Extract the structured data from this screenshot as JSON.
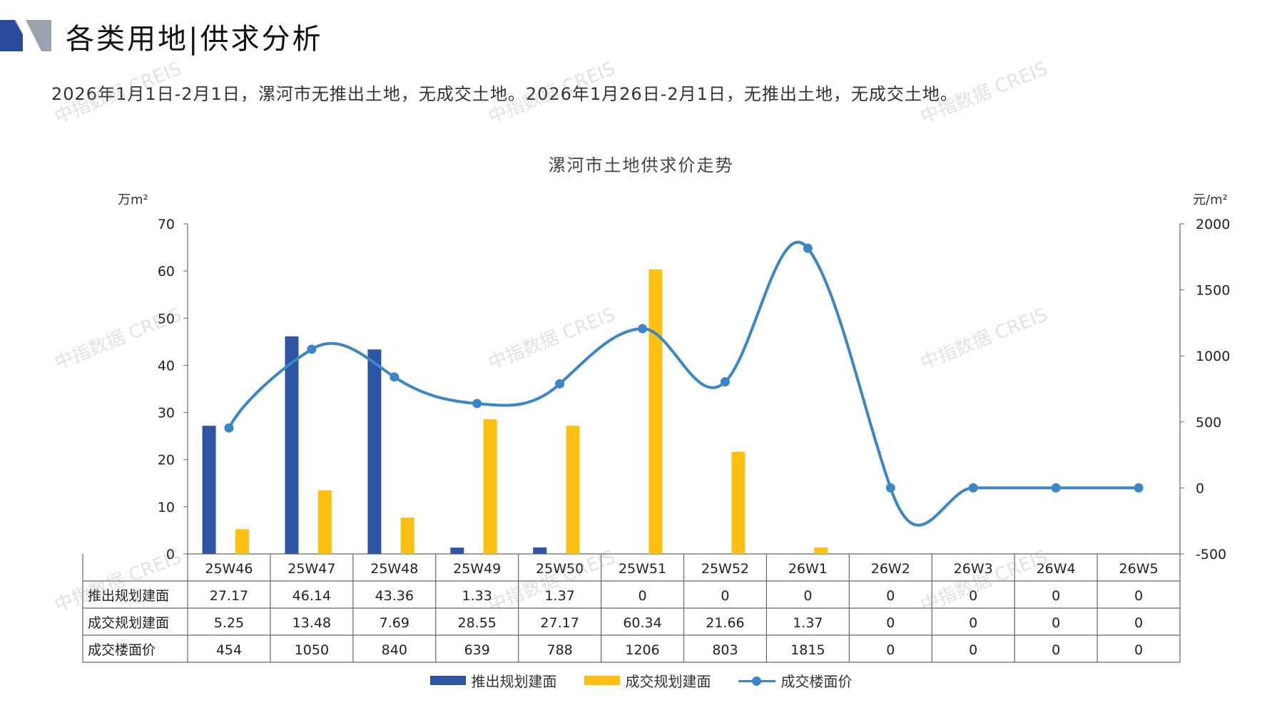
{
  "page": {
    "title": "各类用地|供求分析",
    "summary": "2026年1月1日-2月1日，漯河市无推出土地，无成交土地。2026年1月26日-2月1日，无推出土地，无成交土地。",
    "watermark": "中指数据 CREIS"
  },
  "colors": {
    "supply": "#2e55a4",
    "deal": "#fbc012",
    "price": "#3a86c8",
    "logo_dark": "#2a4b9b",
    "logo_grey": "#9aa3ad"
  },
  "chart_data": {
    "type": "bar",
    "title": "漯河市土地供求价走势",
    "y_left_unit": "万m²",
    "y_right_unit": "元/m²",
    "y_left_lim": [
      0,
      70
    ],
    "y_left_ticks": [
      "0",
      "10",
      "20",
      "30",
      "40",
      "50",
      "60",
      "70"
    ],
    "y_right_lim": [
      -500,
      2000
    ],
    "y_right_ticks": [
      "-500",
      "0",
      "500",
      "1000",
      "1500",
      "2000"
    ],
    "categories": [
      "25W46",
      "25W47",
      "25W48",
      "25W49",
      "25W50",
      "25W51",
      "25W52",
      "26W1",
      "26W2",
      "26W3",
      "26W4",
      "26W5"
    ],
    "series": [
      {
        "name": "推出规划建面",
        "kind": "bar",
        "axis": "left",
        "values": [
          27.17,
          46.14,
          43.36,
          1.33,
          1.37,
          0,
          0,
          0,
          0,
          0,
          0,
          0
        ],
        "labels": [
          "27.17",
          "46.14",
          "43.36",
          "1.33",
          "1.37",
          "0",
          "0",
          "0",
          "0",
          "0",
          "0",
          "0"
        ]
      },
      {
        "name": "成交规划建面",
        "kind": "bar",
        "axis": "left",
        "values": [
          5.25,
          13.48,
          7.69,
          28.55,
          27.17,
          60.34,
          21.66,
          1.37,
          0,
          0,
          0,
          0
        ],
        "labels": [
          "5.25",
          "13.48",
          "7.69",
          "28.55",
          "27.17",
          "60.34",
          "21.66",
          "1.37",
          "0",
          "0",
          "0",
          "0"
        ]
      },
      {
        "name": "成交楼面价",
        "kind": "line",
        "axis": "right",
        "smooth": true,
        "values": [
          454,
          1050,
          840,
          639,
          788,
          1206,
          803,
          1815,
          0,
          0,
          0,
          0
        ],
        "labels": [
          "454",
          "1050",
          "840",
          "639",
          "788",
          "1206",
          "803",
          "1815",
          "0",
          "0",
          "0",
          "0"
        ]
      }
    ],
    "legend": "bottom",
    "grid": false,
    "data_table": true
  }
}
